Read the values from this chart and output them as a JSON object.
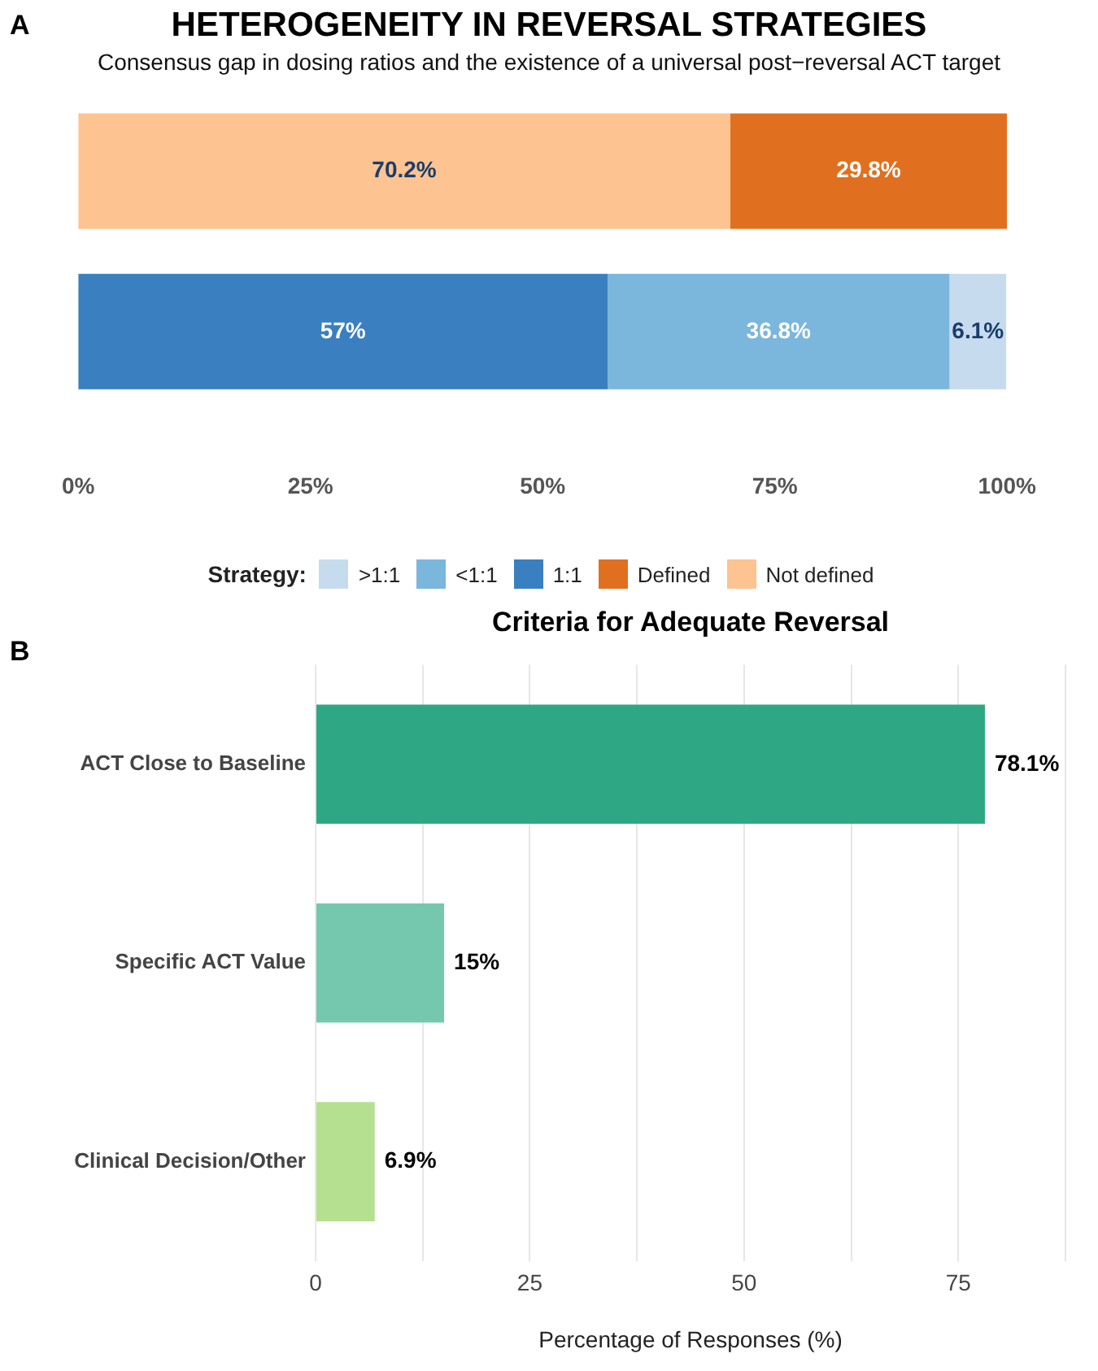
{
  "chart_data": [
    {
      "type": "bar",
      "title": "HETEROGENEITY IN REVERSAL STRATEGIES",
      "subtitle": "Consensus gap in dosing ratios and the existence of a universal post−reversal ACT target",
      "annotations": [
        "A"
      ],
      "orientation": "horizontal",
      "stacked": true,
      "categories": [
        null,
        null
      ],
      "series": [
        {
          "name": "Not defined",
          "color": "#fdc391",
          "values": [
            70.2,
            null
          ],
          "value_labels": [
            "70.2%",
            null
          ]
        },
        {
          "name": "Defined",
          "color": "#e0701f",
          "values": [
            29.8,
            null
          ],
          "value_labels": [
            "29.8%",
            null
          ]
        },
        {
          "name": "1:1",
          "color": "#3a7fc0",
          "values": [
            null,
            57
          ],
          "value_labels": [
            null,
            "57%"
          ]
        },
        {
          "name": "<1:1",
          "color": "#7bb6dc",
          "values": [
            null,
            36.8
          ],
          "value_labels": [
            null,
            "36.8%"
          ]
        },
        {
          "name": ">1:1",
          "color": "#c6dbee",
          "values": [
            null,
            6.1
          ],
          "value_labels": [
            null,
            "6.1%"
          ]
        }
      ],
      "xlim": [
        0,
        100
      ],
      "xticks": [
        {
          "value": 0,
          "label": "0%"
        },
        {
          "value": 25,
          "label": "25%"
        },
        {
          "value": 50,
          "label": "50%"
        },
        {
          "value": 75,
          "label": "75%"
        },
        {
          "value": 100,
          "label": "100%"
        }
      ],
      "tick_labels": "x",
      "legend": "bottom",
      "legend_title": "Strategy:"
    },
    {
      "type": "bar",
      "title": "Criteria for Adequate Reversal",
      "annotations": [
        "B"
      ],
      "orientation": "horizontal",
      "categories": [
        "ACT Close to Baseline",
        "Specific ACT Value",
        "Clinical Decision/Other"
      ],
      "values": [
        78.1,
        15,
        6.9
      ],
      "colors": [
        "#2ea884",
        "#75c8ad",
        "#b5e08f"
      ],
      "value_labels": [
        "78.1%",
        "15%",
        "6.9%"
      ],
      "xlim": [
        0,
        87.5
      ],
      "xticks": [
        0,
        {
          "value": 12.5,
          "label": null
        },
        25,
        {
          "value": 37.5,
          "label": null
        },
        50,
        {
          "value": 62.5,
          "label": null
        },
        75,
        {
          "value": 87.5,
          "label": null
        }
      ],
      "xlabel": "Percentage of Responses (%)",
      "grid": "x",
      "legend": false
    }
  ]
}
